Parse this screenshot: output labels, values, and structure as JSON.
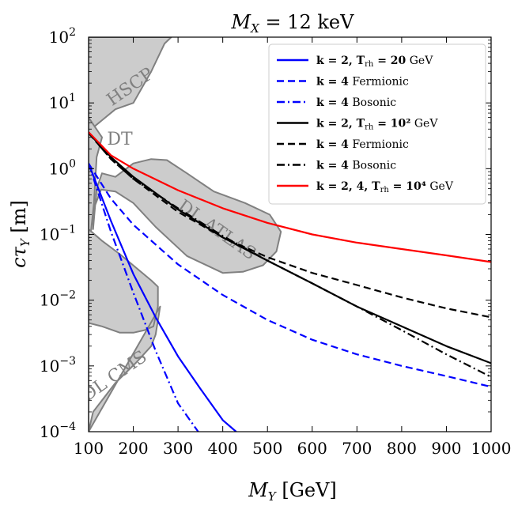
{
  "chart_data": {
    "type": "line",
    "title": "M_X = 12 keV",
    "title_parts": {
      "var": "M",
      "sub": "X",
      "rest": " = 12 keV"
    },
    "xlabel": {
      "var": "M",
      "sub": "Y",
      "unit": " [GeV]"
    },
    "ylabel": {
      "var": "cτ",
      "sub": "Y",
      "unit": " [m]"
    },
    "xscale": "linear",
    "yscale": "log",
    "xlim": [
      100,
      1000
    ],
    "ylim": [
      0.0001,
      100
    ],
    "xticks": [
      {
        "value": 100,
        "label": "100"
      },
      {
        "value": 200,
        "label": "200"
      },
      {
        "value": 300,
        "label": "300"
      },
      {
        "value": 400,
        "label": "400"
      },
      {
        "value": 500,
        "label": "500"
      },
      {
        "value": 600,
        "label": "600"
      },
      {
        "value": 700,
        "label": "700"
      },
      {
        "value": 800,
        "label": "800"
      },
      {
        "value": 900,
        "label": "900"
      },
      {
        "value": 1000,
        "label": "1000"
      }
    ],
    "yticks": [
      {
        "value": 0.0001,
        "base": "10",
        "exp": "−4"
      },
      {
        "value": 0.001,
        "base": "10",
        "exp": "−3"
      },
      {
        "value": 0.01,
        "base": "10",
        "exp": "−2"
      },
      {
        "value": 0.1,
        "base": "10",
        "exp": "−1"
      },
      {
        "value": 1,
        "base": "10",
        "exp": "0"
      },
      {
        "value": 10,
        "base": "10",
        "exp": "1"
      },
      {
        "value": 100,
        "base": "10",
        "exp": "2"
      }
    ],
    "legend_position": "top-right",
    "regions": [
      {
        "name": "HSCP",
        "label": "HSCP",
        "color": "#cccccc",
        "edge": "#808080",
        "label_at": {
          "x": 200,
          "y": 15
        },
        "label_rotate": -35,
        "boundary": [
          [
            100,
            100
          ],
          [
            100,
            3.7
          ],
          [
            160,
            8
          ],
          [
            200,
            10
          ],
          [
            240,
            30
          ],
          [
            270,
            80
          ],
          [
            285,
            100
          ]
        ]
      },
      {
        "name": "DT",
        "label": "DT",
        "color": "#cccccc",
        "edge": "#808080",
        "label_at": {
          "x": 170,
          "y": 2.3
        },
        "label_rotate": 0,
        "boundary": [
          [
            100,
            6
          ],
          [
            130,
            3
          ],
          [
            118,
            1.5
          ],
          [
            112,
            0.3
          ],
          [
            100,
            0.05
          ]
        ]
      },
      {
        "name": "DL ATLAS",
        "label": "DL ATLAS",
        "color": "#cccccc",
        "edge": "#808080",
        "label_at": {
          "x": 380,
          "y": 0.1
        },
        "label_rotate": 35,
        "boundary": [
          [
            130,
            0.85
          ],
          [
            160,
            0.75
          ],
          [
            200,
            1.2
          ],
          [
            240,
            1.4
          ],
          [
            275,
            1.35
          ],
          [
            320,
            0.85
          ],
          [
            380,
            0.45
          ],
          [
            450,
            0.3
          ],
          [
            505,
            0.2
          ],
          [
            530,
            0.11
          ],
          [
            520,
            0.055
          ],
          [
            490,
            0.034
          ],
          [
            445,
            0.027
          ],
          [
            400,
            0.026
          ],
          [
            320,
            0.047
          ],
          [
            250,
            0.13
          ],
          [
            200,
            0.3
          ],
          [
            160,
            0.45
          ],
          [
            128,
            0.48
          ],
          [
            112,
            0.25
          ],
          [
            110,
            0.12
          ],
          [
            118,
            0.5
          ]
        ]
      },
      {
        "name": "DL CMS",
        "label": "DL CMS",
        "color": "#cccccc",
        "edge": "#808080",
        "label_at": {
          "x": 165,
          "y": 0.0006
        },
        "label_rotate": -35,
        "boundary": [
          [
            100,
            0.0001
          ],
          [
            100,
            0.0045
          ],
          [
            130,
            0.004
          ],
          [
            170,
            0.0032
          ],
          [
            200,
            0.0032
          ],
          [
            225,
            0.0035
          ],
          [
            245,
            0.004
          ],
          [
            255,
            0.008
          ],
          [
            255,
            0.016
          ],
          [
            240,
            0.02
          ],
          [
            170,
            0.05
          ],
          [
            130,
            0.08
          ],
          [
            100,
            0.12
          ],
          [
            100,
            0.0001
          ],
          [
            110,
            0.0002
          ],
          [
            160,
            0.00055
          ],
          [
            205,
            0.0011
          ],
          [
            240,
            0.002
          ],
          [
            250,
            0.003
          ],
          [
            260,
            0.008
          ]
        ]
      }
    ],
    "series": [
      {
        "name": "k = 2, T_rh = 20 GeV",
        "label_bold": "k = 2, T",
        "label_sub": "rh",
        "label_eq": " = 20",
        "label_plain": " GeV",
        "color": "#0000ff",
        "dash": "solid",
        "x": [
          100,
          150,
          200,
          250,
          300,
          350,
          400,
          430
        ],
        "y": [
          1.2,
          0.16,
          0.025,
          0.0055,
          0.0014,
          0.00045,
          0.00015,
          0.0001
        ]
      },
      {
        "name": "k = 4 Fermionic (blue)",
        "label_bold": "k = 4",
        "label_sub": "",
        "label_eq": "",
        "label_plain": " Fermionic",
        "color": "#0000ff",
        "dash": "dashed",
        "x": [
          100,
          150,
          200,
          300,
          400,
          500,
          600,
          700,
          800,
          900,
          1000
        ],
        "y": [
          1.2,
          0.35,
          0.14,
          0.035,
          0.012,
          0.005,
          0.0025,
          0.0015,
          0.001,
          0.0007,
          0.00048
        ]
      },
      {
        "name": "k = 4 Bosonic (blue)",
        "label_bold": "k = 4",
        "label_sub": "",
        "label_eq": "",
        "label_plain": " Bosonic",
        "color": "#0000ff",
        "dash": "dashdot",
        "x": [
          100,
          150,
          200,
          250,
          300,
          345
        ],
        "y": [
          1.2,
          0.11,
          0.013,
          0.0017,
          0.00027,
          0.0001
        ]
      },
      {
        "name": "k = 2, T_rh = 10^2 GeV",
        "label_bold": "k = 2, T",
        "label_sub": "rh",
        "label_eq": " = 10²",
        "label_plain": " GeV",
        "color": "#000000",
        "dash": "solid",
        "x": [
          100,
          150,
          200,
          300,
          400,
          500,
          600,
          700,
          800,
          900,
          1000
        ],
        "y": [
          3.5,
          1.5,
          0.75,
          0.24,
          0.09,
          0.04,
          0.018,
          0.008,
          0.004,
          0.002,
          0.0011
        ]
      },
      {
        "name": "k = 4 Fermionic (black)",
        "label_bold": "k = 4",
        "label_sub": "",
        "label_eq": "",
        "label_plain": " Fermionic",
        "color": "#000000",
        "dash": "dashed",
        "x": [
          100,
          150,
          200,
          300,
          400,
          500,
          600,
          700,
          800,
          900,
          1000
        ],
        "y": [
          3.5,
          1.4,
          0.7,
          0.22,
          0.09,
          0.045,
          0.026,
          0.017,
          0.011,
          0.0075,
          0.0055
        ]
      },
      {
        "name": "k = 4 Bosonic (black)",
        "label_bold": "k = 4",
        "label_sub": "",
        "label_eq": "",
        "label_plain": " Bosonic",
        "color": "#000000",
        "dash": "dashdot",
        "x": [
          100,
          150,
          200,
          300,
          400,
          500,
          600,
          700,
          800,
          900,
          1000
        ],
        "y": [
          3.5,
          1.4,
          0.7,
          0.25,
          0.095,
          0.04,
          0.018,
          0.008,
          0.0035,
          0.0015,
          0.00068
        ]
      },
      {
        "name": "k = 2, 4, T_rh = 10^4 GeV",
        "label_bold": "k = 2, 4, T",
        "label_sub": "rh",
        "label_eq": " = 10⁴",
        "label_plain": " GeV",
        "color": "#ff0000",
        "dash": "solid",
        "x": [
          100,
          150,
          200,
          300,
          400,
          500,
          600,
          700,
          800,
          900,
          1000
        ],
        "y": [
          3.6,
          1.6,
          1.0,
          0.47,
          0.25,
          0.15,
          0.1,
          0.075,
          0.06,
          0.048,
          0.038
        ]
      }
    ]
  }
}
